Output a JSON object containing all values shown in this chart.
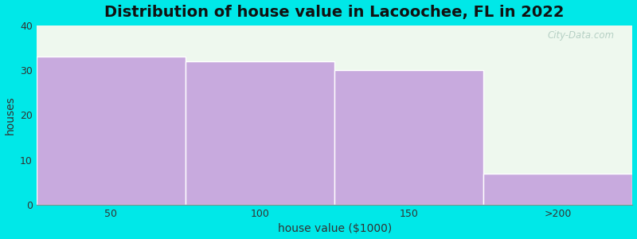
{
  "title": "Distribution of house value in Lacoochee, FL in 2022",
  "xlabel": "house value ($1000)",
  "ylabel": "houses",
  "categories": [
    "50",
    "100",
    "150",
    ">200"
  ],
  "values": [
    33,
    32,
    30,
    7
  ],
  "bar_color": "#c8aade",
  "bar_edgecolor": "#ffffff",
  "ylim": [
    0,
    40
  ],
  "yticks": [
    0,
    10,
    20,
    30,
    40
  ],
  "background_color": "#00e8e8",
  "plot_bg_color": "#eef8ee",
  "title_fontsize": 14,
  "axis_label_fontsize": 10,
  "tick_fontsize": 9,
  "bar_width": 1.0
}
